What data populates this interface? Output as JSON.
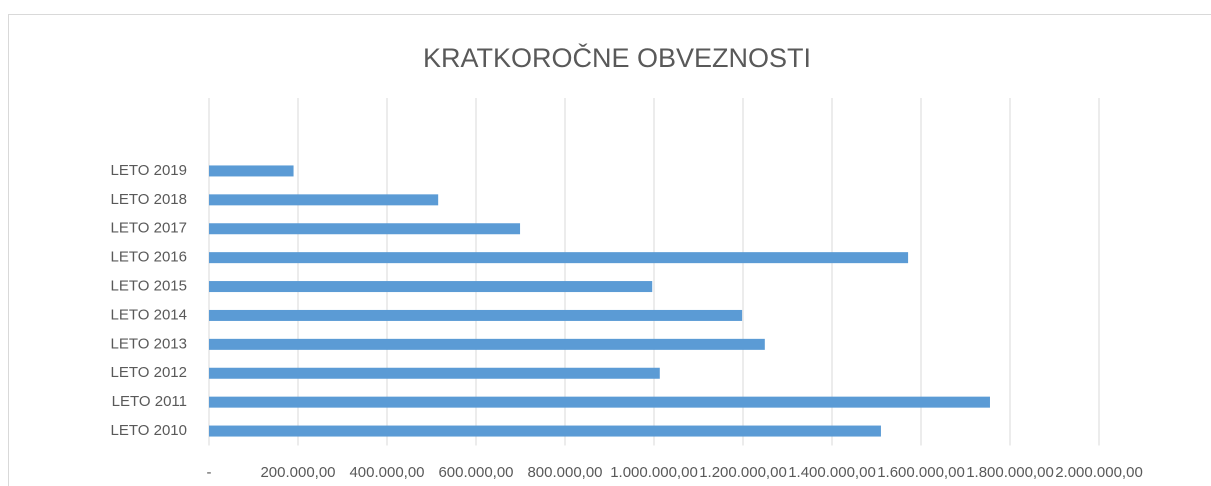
{
  "chart_data": {
    "type": "barh",
    "title": "KRATKOROČNE OBVEZNOSTI",
    "categories": [
      "LETO 2010",
      "LETO 2011",
      "LETO 2012",
      "LETO 2013",
      "LETO 2014",
      "LETO 2015",
      "LETO 2016",
      "LETO 2017",
      "LETO 2018",
      "LETO 2019"
    ],
    "values": [
      1510000,
      1755000,
      1013000,
      1249000,
      1198000,
      996000,
      1571000,
      699000,
      515000,
      190000
    ],
    "color": "#5b9bd5",
    "xlim": [
      0,
      2000000
    ],
    "xticks": [
      {
        "value": 0,
        "label": "-"
      },
      {
        "value": 200000,
        "label": "200.000,00"
      },
      {
        "value": 400000,
        "label": "400.000,00"
      },
      {
        "value": 600000,
        "label": "600.000,00"
      },
      {
        "value": 800000,
        "label": "800.000,00"
      },
      {
        "value": 1000000,
        "label": "1.000.000,00"
      },
      {
        "value": 1200000,
        "label": "1.200.000,00"
      },
      {
        "value": 1400000,
        "label": "1.400.000,00"
      },
      {
        "value": 1600000,
        "label": "1.600.000,00"
      },
      {
        "value": 1800000,
        "label": "1.800.000,00"
      },
      {
        "value": 2000000,
        "label": "2.000.000,00"
      }
    ],
    "grid": true
  }
}
